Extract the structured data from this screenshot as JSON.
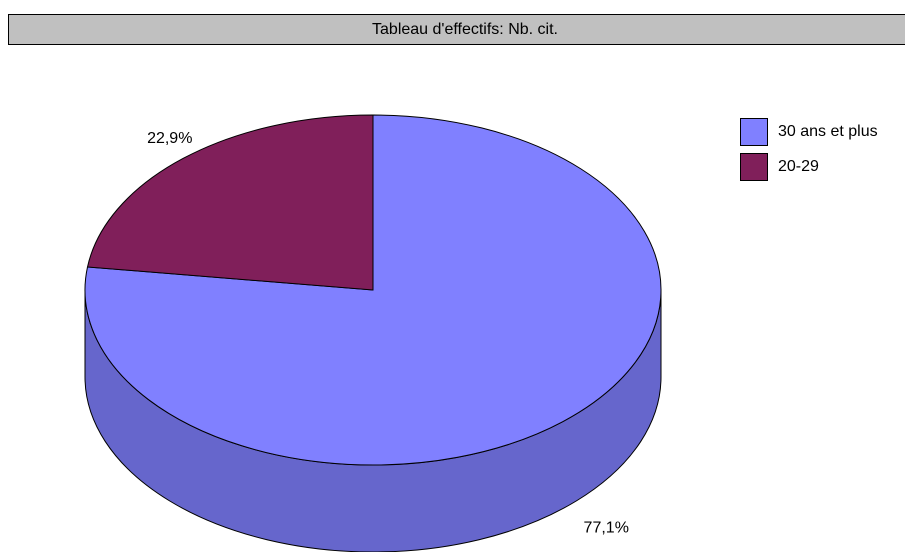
{
  "chart_data": {
    "type": "pie",
    "title": "Tableau d'effectifs: Nb. cit.",
    "categories": [
      "30 ans et plus",
      "20-29"
    ],
    "values": [
      77.1,
      22.9
    ],
    "value_labels": [
      "77,1%",
      "22,9%"
    ],
    "colors": [
      "#8080ff",
      "#801f5a"
    ],
    "legend": "top-right"
  }
}
